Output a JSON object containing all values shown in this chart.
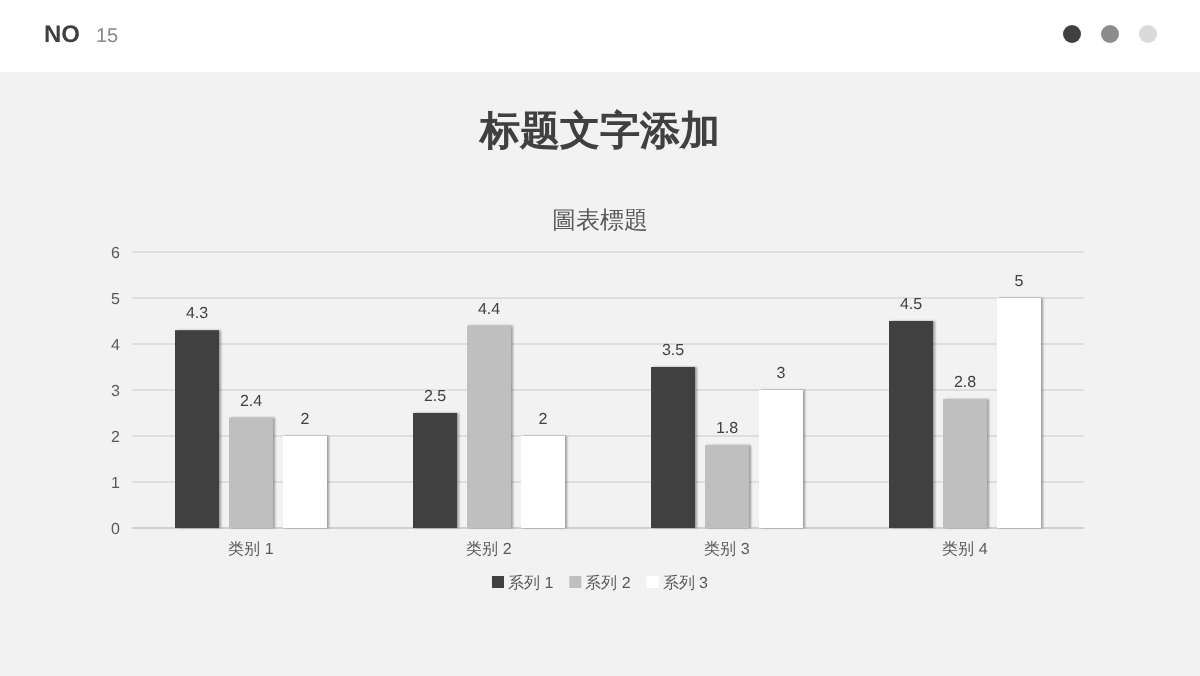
{
  "chart_data": {
    "type": "bar",
    "title": "标题文字添加",
    "subtitle": "圖表標題",
    "annotations": [
      "NO",
      "15"
    ],
    "categories": [
      "类别 1",
      "类别 2",
      "类别 3",
      "类别 4"
    ],
    "series": [
      {
        "name": "系列 1",
        "color": "#404040",
        "values": [
          4.3,
          2.5,
          3.5,
          4.5
        ]
      },
      {
        "name": "系列 2",
        "color": "#bfbfbf",
        "values": [
          2.4,
          4.4,
          1.8,
          2.8
        ]
      },
      {
        "name": "系列 3",
        "color": "#ffffff",
        "values": [
          2,
          2,
          3,
          5
        ]
      }
    ],
    "ylim": [
      0,
      6
    ],
    "yticks": [
      0,
      1,
      2,
      3,
      4,
      5,
      6
    ],
    "grid": "y",
    "legend": "bottom",
    "data_labels": true
  }
}
